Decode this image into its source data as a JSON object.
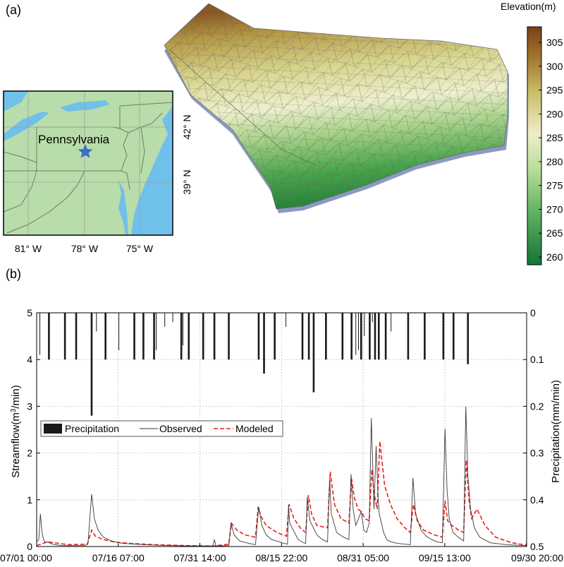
{
  "panel_a": {
    "label": "(a)",
    "map": {
      "state_label": "Pennsylvania",
      "lon_ticks": [
        "81° W",
        "78° W",
        "75° W"
      ],
      "lat_ticks": [
        "42° N",
        "39° N"
      ],
      "land_color": "#b9dcab",
      "water_color": "#6fc0ea",
      "marker_color": "#3b6fc6",
      "marker_icon": "star-icon"
    },
    "colorbar": {
      "title": "Elevation(m)",
      "ticks": [
        "305",
        "300",
        "295",
        "290",
        "285",
        "280",
        "275",
        "270",
        "265",
        "260"
      ],
      "color_top": "#7b3f15",
      "color_mid": "#f2f0cf",
      "color_bottom": "#1a7a3a"
    }
  },
  "panel_b": {
    "label": "(b)",
    "legend": {
      "precip": "Precipitation",
      "observed": "Observed",
      "modeled": "Modeled"
    }
  },
  "chart_data": {
    "type": "line",
    "title": "",
    "xlabel": "",
    "ylabel": "Streamflow(m³/min)",
    "ylabel_text": "Streamflow(m",
    "ylabel_sup": "3",
    "ylabel_tail": "/min)",
    "y2label": "Precipitation(mm/min)",
    "xlim": [
      0,
      91.8
    ],
    "ylim": [
      0,
      5
    ],
    "y2lim": [
      0.5,
      0
    ],
    "x_ticks": [
      0,
      15.29,
      30.58,
      45.88,
      61.17,
      76.46,
      91.75
    ],
    "x_tick_labels": [
      "07/01 00:00",
      "07/16 07:00",
      "07/31 14:00",
      "08/15 22:00",
      "08/31 05:00",
      "09/15 13:00",
      "09/30 20:00"
    ],
    "y_ticks": [
      0,
      1,
      2,
      3,
      4,
      5
    ],
    "y_tick_labels": [
      "0",
      "1",
      "2",
      "3",
      "4",
      "5"
    ],
    "y2_ticks": [
      0,
      0.1,
      0.2,
      0.3,
      0.4,
      0.5
    ],
    "y2_tick_labels": [
      "0",
      "0.1",
      "0.2",
      "0.3",
      "0.4",
      "0.5"
    ],
    "grid": true,
    "legend_position": "upper-left",
    "colors": {
      "precipitation": "#1a1a1a",
      "observed": "#3a3a3a",
      "modeled": "#e8211f"
    },
    "precipitation": {
      "name": "Precipitation",
      "x": [
        0.6,
        2.3,
        5.3,
        7.4,
        10.3,
        11.2,
        12.9,
        15.4,
        18.3,
        20.0,
        22.0,
        22.4,
        24.0,
        25.5,
        27.1,
        27.4,
        28.5,
        31.2,
        33.3,
        36.0,
        41.6,
        42.6,
        44.6,
        46.7,
        49.8,
        51.0,
        51.9,
        54.2,
        57.3,
        59.0,
        59.8,
        60.3,
        60.8,
        61.4,
        62.4,
        62.9,
        63.4,
        64.1,
        65.4,
        66.4,
        69.6,
        72.7,
        76.2,
        78.1,
        80.8
      ],
      "values": [
        0.09,
        0.1,
        0.1,
        0.1,
        0.22,
        0.04,
        0.1,
        0.08,
        0.1,
        0.1,
        0.1,
        0.08,
        0.03,
        0.02,
        0.1,
        0.07,
        0.1,
        0.1,
        0.1,
        0.1,
        0.1,
        0.13,
        0.1,
        0.03,
        0.1,
        0.1,
        0.17,
        0.1,
        0.1,
        0.1,
        0.09,
        0.08,
        0.1,
        0.05,
        0.1,
        0.02,
        0.1,
        0.1,
        0.1,
        0.04,
        0.1,
        0.1,
        0.1,
        0.1,
        0.11
      ]
    },
    "series": [
      {
        "name": "Observed",
        "x": [
          0,
          0.4,
          0.7,
          1.0,
          1.3,
          1.6,
          2.0,
          3.0,
          4.0,
          5.0,
          6.0,
          7.0,
          8.0,
          9.0,
          9.6,
          10.3,
          10.8,
          11.5,
          12.5,
          14.0,
          16.0,
          20.0,
          25.0,
          30.0,
          33.0,
          33.3,
          33.6,
          36.0,
          36.4,
          37.0,
          38.0,
          40.0,
          41.0,
          41.6,
          42.2,
          43.0,
          44.0,
          46.0,
          47.0,
          47.2,
          47.4,
          48.3,
          49.0,
          50.0,
          50.4,
          50.7,
          51.2,
          52.5,
          53.5,
          54.5,
          54.9,
          55.2,
          56.2,
          57.5,
          58.5,
          58.9,
          59.3,
          59.8,
          60.3,
          60.8,
          61.3,
          61.8,
          62.3,
          62.7,
          63.2,
          63.6,
          64.0,
          64.2,
          64.6,
          65.0,
          65.4,
          65.6,
          66.0,
          66.5,
          67.5,
          69.0,
          70.0,
          70.5,
          71.0,
          72.0,
          73.0,
          74.0,
          75.0,
          76.0,
          76.5,
          76.9,
          77.3,
          78.0,
          79.0,
          80.0,
          80.4,
          80.8,
          81.3,
          82.0,
          83.0,
          85.0,
          88.0,
          91.8
        ],
        "values": [
          0.1,
          0.15,
          0.7,
          0.3,
          0.15,
          0.08,
          0.1,
          0.05,
          0.03,
          0.02,
          0.02,
          0.02,
          0.02,
          0.02,
          0.05,
          1.12,
          0.6,
          0.35,
          0.2,
          0.12,
          0.07,
          0.04,
          0.02,
          0.01,
          0.01,
          0.15,
          0.01,
          0.02,
          0.5,
          0.25,
          0.12,
          0.06,
          0.04,
          0.85,
          0.45,
          0.25,
          0.15,
          0.08,
          0.05,
          0.9,
          0.5,
          0.3,
          0.15,
          0.08,
          0.07,
          1.05,
          0.55,
          0.25,
          0.15,
          0.1,
          1.45,
          0.7,
          0.3,
          0.2,
          0.15,
          1.55,
          0.8,
          0.45,
          0.6,
          0.75,
          0.35,
          0.3,
          0.5,
          2.75,
          0.8,
          2.15,
          1.0,
          0.7,
          0.5,
          0.3,
          0.2,
          0.15,
          0.12,
          0.1,
          0.07,
          0.05,
          0.04,
          1.47,
          0.7,
          0.35,
          0.22,
          0.15,
          0.1,
          0.08,
          2.52,
          1.2,
          0.6,
          0.3,
          0.2,
          0.12,
          3.0,
          1.5,
          0.8,
          0.4,
          0.2,
          0.08,
          0.04,
          0.02
        ]
      },
      {
        "name": "Modeled",
        "x": [
          0,
          2.0,
          6.0,
          9.5,
          10.3,
          11.0,
          12.5,
          14.5,
          17.0,
          22.0,
          28.0,
          33.0,
          36.0,
          36.5,
          37.5,
          39.0,
          41.0,
          41.5,
          42.0,
          43.0,
          45.0,
          46.8,
          47.3,
          48.2,
          49.5,
          50.4,
          50.9,
          51.5,
          52.5,
          54.5,
          55.0,
          55.8,
          57.0,
          58.5,
          59.0,
          59.5,
          60.2,
          60.8,
          61.5,
          62.3,
          62.8,
          63.2,
          63.8,
          64.3,
          65.2,
          66.3,
          67.5,
          69.0,
          70.0,
          70.6,
          71.3,
          72.5,
          74.5,
          76.0,
          76.5,
          77.0,
          77.8,
          78.5,
          79.0,
          80.0,
          80.5,
          81.0,
          81.5,
          82.5,
          84.0,
          86.0,
          89.0,
          91.8
        ],
        "values": [
          0.02,
          0.1,
          0.04,
          0.05,
          0.35,
          0.22,
          0.15,
          0.1,
          0.07,
          0.04,
          0.02,
          0.01,
          0.05,
          0.5,
          0.35,
          0.25,
          0.2,
          0.85,
          0.65,
          0.45,
          0.3,
          0.22,
          0.9,
          0.6,
          0.38,
          0.3,
          1.1,
          0.7,
          0.45,
          0.4,
          1.6,
          0.9,
          0.6,
          0.5,
          1.45,
          1.05,
          0.8,
          0.75,
          0.6,
          0.55,
          1.65,
          1.15,
          0.8,
          2.25,
          1.3,
          0.9,
          0.6,
          0.4,
          0.3,
          0.9,
          0.55,
          0.35,
          0.25,
          0.2,
          0.98,
          0.55,
          0.45,
          0.4,
          0.35,
          0.3,
          1.85,
          1.0,
          0.6,
          0.8,
          0.45,
          0.2,
          0.08,
          0.03
        ]
      }
    ]
  }
}
